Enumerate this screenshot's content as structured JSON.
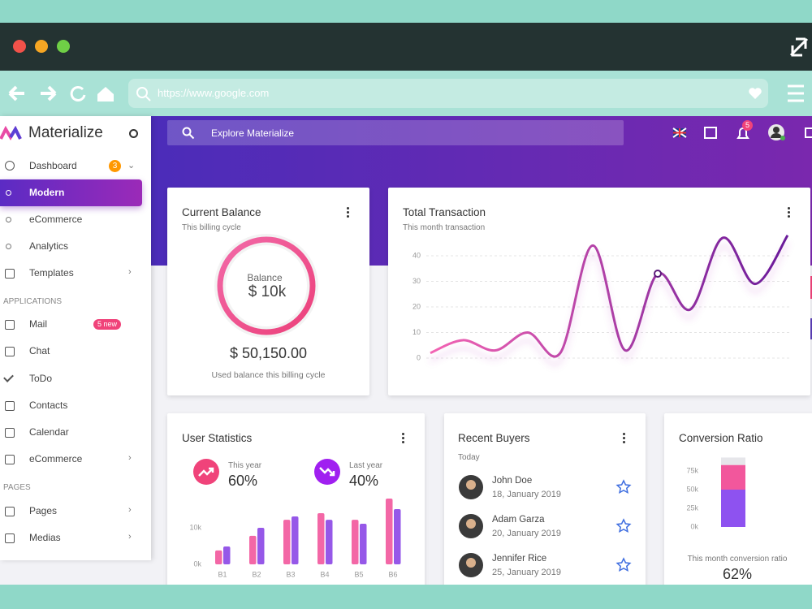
{
  "browser": {
    "url": "https://www.google.com"
  },
  "sidebar": {
    "brand": "Materialize",
    "menu": [
      {
        "label": "Dashboard",
        "badge": "3"
      },
      {
        "label": "Modern"
      },
      {
        "label": "eCommerce"
      },
      {
        "label": "Analytics"
      },
      {
        "label": "Templates"
      }
    ],
    "sections": [
      {
        "title": "APPLICATIONS",
        "items": [
          {
            "label": "Mail",
            "badge": "5 new"
          },
          {
            "label": "Chat"
          },
          {
            "label": "ToDo"
          },
          {
            "label": "Contacts"
          },
          {
            "label": "Calendar"
          },
          {
            "label": "eCommerce"
          }
        ]
      },
      {
        "title": "PAGES",
        "items": [
          {
            "label": "Pages"
          },
          {
            "label": "Medias"
          }
        ]
      }
    ]
  },
  "topbar": {
    "search": "Explore Materialize",
    "notifications": "5"
  },
  "cards": {
    "balance": {
      "title": "Current Balance",
      "subtitle": "This billing cycle",
      "gauge_label": "Balance",
      "gauge_value": "$ 10k",
      "amount": "$ 50,150.00",
      "caption": "Used balance this billing cycle"
    },
    "transaction": {
      "title": "Total Transaction",
      "subtitle": "This month transaction",
      "chart": {
        "type": "line",
        "values": [
          2,
          7,
          3,
          10,
          2,
          44,
          3,
          33,
          19,
          47,
          29,
          48
        ],
        "ylim": [
          0,
          50
        ],
        "yticks": [
          0,
          10,
          20,
          30,
          40
        ],
        "grid": true,
        "gradient": [
          "#f364b3",
          "#6a1b9a"
        ]
      }
    },
    "stats": {
      "title": "User Statistics",
      "items": [
        {
          "label": "This year",
          "value": "60%"
        },
        {
          "label": "Last year",
          "value": "40%"
        }
      ],
      "chart": {
        "type": "bar",
        "categories": [
          "B1",
          "B2",
          "B3",
          "B4",
          "B5",
          "B6"
        ],
        "series": [
          {
            "color": "#f2579c",
            "values": [
              3.8,
              7.8,
              12.2,
              14,
              12.2,
              18
            ]
          },
          {
            "color": "#8b46e6",
            "values": [
              4.9,
              10,
              13.1,
              12.2,
              11.1,
              15.1
            ]
          }
        ],
        "ylim": [
          0,
          20
        ],
        "yticks": [
          {
            "value": 0,
            "label": "0k"
          },
          {
            "value": 10,
            "label": "10k"
          }
        ]
      }
    },
    "buyers": {
      "title": "Recent Buyers",
      "subtitle": "Today",
      "list": [
        {
          "name": "John Doe",
          "date": "18, January 2019"
        },
        {
          "name": "Adam Garza",
          "date": "20, January 2019"
        },
        {
          "name": "Jennifer Rice",
          "date": "25, January 2019"
        }
      ]
    },
    "conversion": {
      "title": "Conversion Ratio",
      "caption": "This month conversion ratio",
      "value": "62%",
      "chart": {
        "type": "stacked-bar",
        "series": [
          {
            "color": "#8e52f0",
            "values": [
              50
            ]
          },
          {
            "color": "#f2579c",
            "values": [
              33
            ]
          },
          {
            "color": "#e6e6ea",
            "values": [
              10
            ]
          }
        ],
        "ylim": [
          0,
          100
        ],
        "yticks": [
          {
            "value": 0,
            "label": "0k"
          },
          {
            "value": 25,
            "label": "25k"
          },
          {
            "value": 50,
            "label": "50k"
          },
          {
            "value": 75,
            "label": "75k"
          }
        ]
      }
    }
  }
}
